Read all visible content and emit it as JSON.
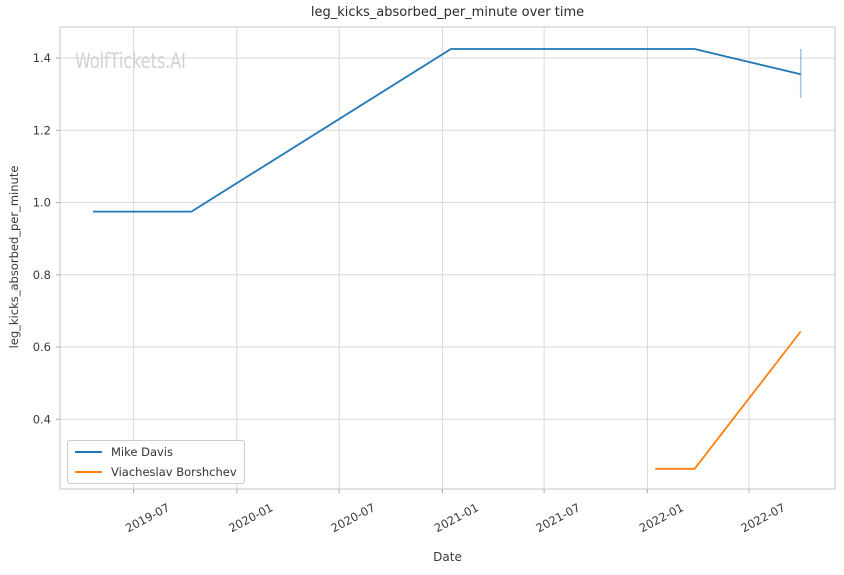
{
  "watermark": "WolfTickets.AI",
  "chart_data": {
    "type": "line",
    "title": "leg_kicks_absorbed_per_minute over time",
    "xlabel": "Date",
    "ylabel": "leg_kicks_absorbed_per_minute",
    "grid": true,
    "legend_position": "lower-left",
    "xlim": [
      "2019-02-20",
      "2022-12-01"
    ],
    "ylim": [
      0.207,
      1.486
    ],
    "yticks": [
      0.4,
      0.6,
      0.8,
      1.0,
      1.2,
      1.4
    ],
    "xticks": [
      {
        "date": "2019-07-01",
        "label": "2019-07"
      },
      {
        "date": "2020-01-01",
        "label": "2020-01"
      },
      {
        "date": "2020-07-01",
        "label": "2020-07"
      },
      {
        "date": "2021-01-01",
        "label": "2021-01"
      },
      {
        "date": "2021-07-01",
        "label": "2021-07"
      },
      {
        "date": "2022-01-01",
        "label": "2022-01"
      },
      {
        "date": "2022-07-01",
        "label": "2022-07"
      }
    ],
    "series": [
      {
        "name": "Mike Davis",
        "color": "#1f77b4",
        "points": [
          {
            "date": "2019-04-20",
            "value": 0.975
          },
          {
            "date": "2019-10-12",
            "value": 0.975
          },
          {
            "date": "2021-01-16",
            "value": 1.425
          },
          {
            "date": "2022-03-26",
            "value": 1.425
          },
          {
            "date": "2022-10-01",
            "value": 1.355
          }
        ],
        "error_bar": {
          "date": "2022-10-01",
          "low": 1.29,
          "high": 1.425
        }
      },
      {
        "name": "Viacheslav Borshchev",
        "color": "#ff7f0e",
        "points": [
          {
            "date": "2022-01-15",
            "value": 0.263
          },
          {
            "date": "2022-03-26",
            "value": 0.263
          },
          {
            "date": "2022-10-01",
            "value": 0.643
          }
        ]
      }
    ]
  }
}
